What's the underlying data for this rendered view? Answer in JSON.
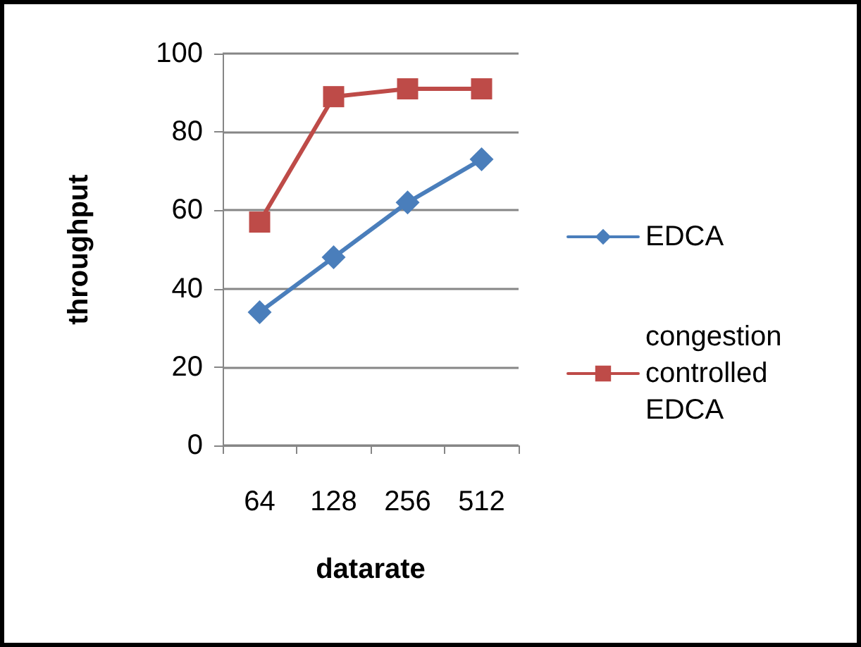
{
  "chart_data": {
    "type": "line",
    "xlabel": "datarate",
    "ylabel": "throughput",
    "categories": [
      "64",
      "128",
      "256",
      "512"
    ],
    "series": [
      {
        "name": "EDCA",
        "color": "#4a7ebb",
        "marker": "diamond",
        "values": [
          34,
          48,
          62,
          73
        ]
      },
      {
        "name": "congestion controlled EDCA",
        "color": "#be4b48",
        "marker": "square",
        "values": [
          57,
          89,
          91,
          91
        ]
      }
    ],
    "ylim": [
      0,
      100
    ],
    "yticks": [
      0,
      20,
      40,
      60,
      80,
      100
    ],
    "grid": "y",
    "legend": "right",
    "line_style": "solid"
  }
}
